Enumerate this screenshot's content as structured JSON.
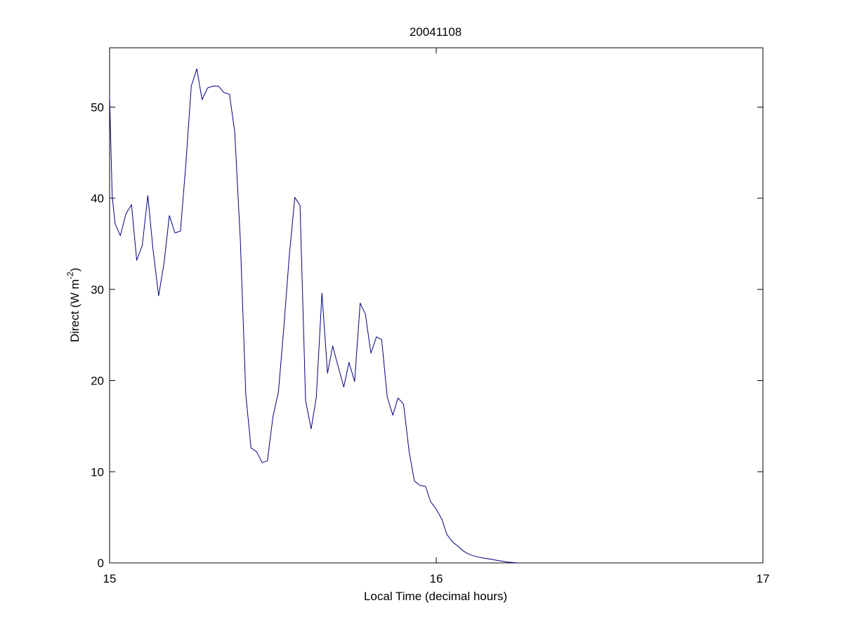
{
  "chart_data": {
    "type": "line",
    "title": "20041108",
    "xlabel": "Local Time (decimal hours)",
    "ylabel": {
      "text": "Direct (W m",
      "superscript": "-2",
      "suffix": ")"
    },
    "xlim": [
      15,
      17
    ],
    "ylim": [
      0,
      56.5
    ],
    "xticks": [
      15,
      16,
      17
    ],
    "yticks": [
      0,
      10,
      20,
      30,
      40,
      50
    ],
    "grid": false,
    "line_color": "#000080",
    "series": [
      {
        "x": [
          15.0,
          15.008,
          15.017,
          15.033,
          15.05,
          15.067,
          15.083,
          15.1,
          15.117,
          15.133,
          15.15,
          15.167,
          15.183,
          15.2,
          15.217,
          15.233,
          15.25,
          15.267,
          15.283,
          15.3,
          15.317,
          15.333,
          15.35,
          15.367,
          15.383,
          15.4,
          15.417,
          15.433,
          15.45,
          15.467,
          15.483,
          15.5,
          15.517,
          15.533,
          15.55,
          15.567,
          15.583,
          15.6,
          15.617,
          15.633,
          15.65,
          15.667,
          15.683,
          15.7,
          15.717,
          15.733,
          15.75,
          15.767,
          15.783,
          15.8,
          15.817,
          15.833,
          15.85,
          15.867,
          15.883,
          15.9,
          15.917,
          15.933,
          15.95,
          15.967,
          15.983,
          16.0,
          16.017,
          16.033,
          16.05,
          16.067,
          16.083,
          16.1,
          16.117,
          16.133,
          16.15,
          16.167,
          16.183,
          16.2,
          16.217,
          16.233,
          16.25
        ],
        "y": [
          51.2,
          40.2,
          37.2,
          35.9,
          38.3,
          39.3,
          33.2,
          34.8,
          40.3,
          34.4,
          29.3,
          33.0,
          38.1,
          36.2,
          36.4,
          43.5,
          52.3,
          54.2,
          50.8,
          52.1,
          52.3,
          52.3,
          51.6,
          51.4,
          47.3,
          35.6,
          18.5,
          12.6,
          12.2,
          11.0,
          11.2,
          16.0,
          18.8,
          25.6,
          33.7,
          40.1,
          39.2,
          17.8,
          14.7,
          18.2,
          29.6,
          20.8,
          23.8,
          21.5,
          19.3,
          22.0,
          19.9,
          28.5,
          27.3,
          23.0,
          24.8,
          24.5,
          18.2,
          16.2,
          18.1,
          17.4,
          12.2,
          9.0,
          8.5,
          8.4,
          6.7,
          5.9,
          4.8,
          3.1,
          2.3,
          1.8,
          1.3,
          0.95,
          0.75,
          0.6,
          0.5,
          0.4,
          0.3,
          0.2,
          0.1,
          0.05,
          0.0
        ]
      }
    ]
  }
}
